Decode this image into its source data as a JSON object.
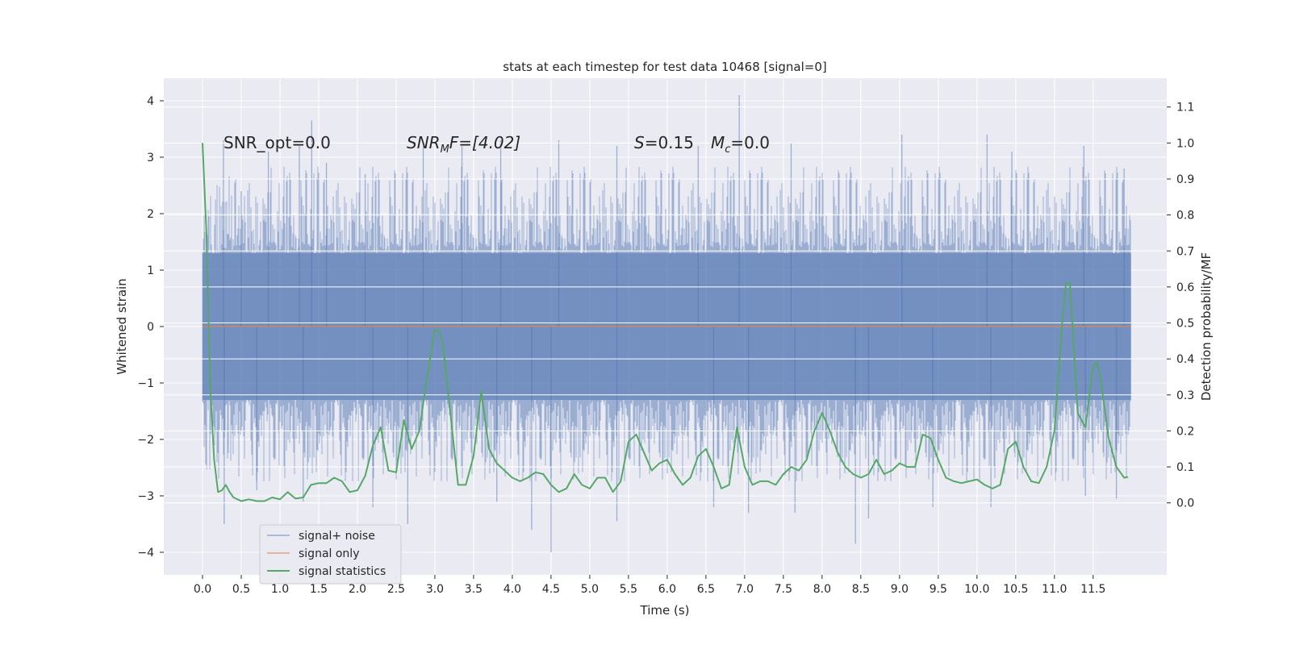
{
  "chart_data": {
    "type": "line",
    "title": "stats at each timestep for test data 10468 [signal=0]",
    "xlabel": "Time (s)",
    "ylabel": "Whitened strain",
    "y2label": "Detection probability/MF",
    "xlim": [
      -0.5,
      12.45
    ],
    "ylim": [
      -4.4,
      4.4
    ],
    "y2lim": [
      -0.2,
      1.18
    ],
    "x_ticks": [
      "0.0",
      "0.5",
      "1.0",
      "1.5",
      "2.0",
      "2.5",
      "3.0",
      "3.5",
      "4.0",
      "4.5",
      "5.0",
      "5.5",
      "6.0",
      "6.5",
      "7.0",
      "7.5",
      "8.0",
      "8.5",
      "9.0",
      "9.5",
      "10.0",
      "10.5",
      "11.0",
      "11.5"
    ],
    "y_ticks": [
      "−4",
      "−3",
      "−2",
      "−1",
      "0",
      "1",
      "2",
      "3",
      "4"
    ],
    "y2_ticks": [
      "0.0",
      "0.1",
      "0.2",
      "0.3",
      "0.4",
      "0.5",
      "0.6",
      "0.7",
      "0.8",
      "0.9",
      "1.0",
      "1.1"
    ],
    "grid": true,
    "legend_position": "lower-left",
    "colors": {
      "background": "#eaeaf2",
      "grid": "#ffffff",
      "noise": "#4c72b0",
      "signal": "#dd8452",
      "stats": "#55a868"
    },
    "annotations": {
      "snr_opt": "SNR_opt=0.0",
      "snr_mf_base": "SNR",
      "snr_mf_sub": "M",
      "snr_mf_rest": "F=[4.02]",
      "s_base": "S",
      "s_rest": "=0.15",
      "mc_base": "M",
      "mc_sub": "c",
      "mc_rest": "=0.0"
    },
    "noise_series": {
      "name": "signal+ noise",
      "x_start": 0.0,
      "x_end": 11.99,
      "core_amplitude": 1.3,
      "spikes": [
        {
          "x": 0.27,
          "y": 3.3
        },
        {
          "x": 0.5,
          "y": 2.4
        },
        {
          "x": 0.85,
          "y": 3.1
        },
        {
          "x": 1.25,
          "y": 3.2
        },
        {
          "x": 1.41,
          "y": 3.65
        },
        {
          "x": 1.6,
          "y": 2.9
        },
        {
          "x": 2.1,
          "y": 2.7
        },
        {
          "x": 2.85,
          "y": 3.2
        },
        {
          "x": 3.35,
          "y": 3.2
        },
        {
          "x": 3.85,
          "y": 3.3
        },
        {
          "x": 4.6,
          "y": 3.3
        },
        {
          "x": 5.35,
          "y": 3.2
        },
        {
          "x": 6.4,
          "y": 3.2
        },
        {
          "x": 6.93,
          "y": 4.1
        },
        {
          "x": 7.6,
          "y": 3.25
        },
        {
          "x": 9.03,
          "y": 3.4
        },
        {
          "x": 10.13,
          "y": 3.4
        },
        {
          "x": 10.45,
          "y": 3.1
        },
        {
          "x": 11.38,
          "y": 3.2
        },
        {
          "x": 11.9,
          "y": 2.8
        },
        {
          "x": 0.28,
          "y": -3.5
        },
        {
          "x": 0.7,
          "y": -2.9
        },
        {
          "x": 1.3,
          "y": -3.1
        },
        {
          "x": 2.2,
          "y": -3.2
        },
        {
          "x": 2.65,
          "y": -3.5
        },
        {
          "x": 3.8,
          "y": -3.1
        },
        {
          "x": 4.25,
          "y": -3.6
        },
        {
          "x": 4.5,
          "y": -4.0
        },
        {
          "x": 5.35,
          "y": -3.45
        },
        {
          "x": 6.6,
          "y": -3.2
        },
        {
          "x": 7.05,
          "y": -3.3
        },
        {
          "x": 7.65,
          "y": -3.3
        },
        {
          "x": 8.43,
          "y": -3.85
        },
        {
          "x": 8.6,
          "y": -3.4
        },
        {
          "x": 9.43,
          "y": -3.2
        },
        {
          "x": 10.18,
          "y": -3.2
        },
        {
          "x": 11.4,
          "y": -3.0
        },
        {
          "x": 11.8,
          "y": -3.05
        }
      ]
    },
    "signal_series": {
      "name": "signal only",
      "x": [
        0.0,
        11.99
      ],
      "y": [
        0.0,
        0.0
      ]
    },
    "stats_series": {
      "name": "signal statistics",
      "x": [
        0.0,
        0.05,
        0.1,
        0.15,
        0.2,
        0.25,
        0.3,
        0.35,
        0.4,
        0.5,
        0.6,
        0.7,
        0.8,
        0.9,
        1.0,
        1.1,
        1.2,
        1.3,
        1.4,
        1.5,
        1.6,
        1.7,
        1.8,
        1.9,
        2.0,
        2.1,
        2.2,
        2.3,
        2.4,
        2.5,
        2.6,
        2.7,
        2.8,
        2.9,
        3.0,
        3.05,
        3.1,
        3.2,
        3.3,
        3.4,
        3.5,
        3.6,
        3.7,
        3.8,
        3.9,
        4.0,
        4.1,
        4.2,
        4.3,
        4.4,
        4.5,
        4.6,
        4.7,
        4.8,
        4.9,
        5.0,
        5.1,
        5.2,
        5.3,
        5.4,
        5.5,
        5.6,
        5.7,
        5.8,
        5.9,
        6.0,
        6.1,
        6.2,
        6.3,
        6.4,
        6.5,
        6.6,
        6.7,
        6.8,
        6.9,
        7.0,
        7.1,
        7.2,
        7.3,
        7.4,
        7.5,
        7.6,
        7.7,
        7.8,
        7.9,
        8.0,
        8.1,
        8.2,
        8.3,
        8.4,
        8.5,
        8.6,
        8.7,
        8.8,
        8.9,
        9.0,
        9.1,
        9.2,
        9.3,
        9.4,
        9.5,
        9.6,
        9.7,
        9.8,
        9.9,
        10.0,
        10.1,
        10.2,
        10.3,
        10.4,
        10.5,
        10.6,
        10.7,
        10.8,
        10.9,
        11.0,
        11.05,
        11.1,
        11.15,
        11.2,
        11.3,
        11.4,
        11.5,
        11.55,
        11.6,
        11.7,
        11.8,
        11.9,
        11.95
      ],
      "y": [
        1.0,
        0.75,
        0.32,
        0.12,
        0.03,
        0.035,
        0.05,
        0.03,
        0.015,
        0.005,
        0.01,
        0.005,
        0.005,
        0.015,
        0.01,
        0.03,
        0.012,
        0.015,
        0.05,
        0.055,
        0.055,
        0.07,
        0.06,
        0.03,
        0.035,
        0.075,
        0.16,
        0.21,
        0.09,
        0.085,
        0.23,
        0.15,
        0.2,
        0.35,
        0.48,
        0.48,
        0.45,
        0.25,
        0.05,
        0.05,
        0.13,
        0.31,
        0.15,
        0.11,
        0.09,
        0.07,
        0.06,
        0.07,
        0.085,
        0.08,
        0.05,
        0.03,
        0.04,
        0.08,
        0.05,
        0.04,
        0.07,
        0.07,
        0.03,
        0.06,
        0.17,
        0.19,
        0.14,
        0.09,
        0.11,
        0.12,
        0.08,
        0.05,
        0.07,
        0.13,
        0.15,
        0.1,
        0.04,
        0.05,
        0.21,
        0.1,
        0.05,
        0.06,
        0.06,
        0.05,
        0.08,
        0.1,
        0.09,
        0.12,
        0.2,
        0.25,
        0.2,
        0.14,
        0.1,
        0.08,
        0.07,
        0.08,
        0.12,
        0.08,
        0.09,
        0.11,
        0.1,
        0.1,
        0.19,
        0.18,
        0.12,
        0.07,
        0.06,
        0.055,
        0.06,
        0.065,
        0.05,
        0.04,
        0.05,
        0.15,
        0.17,
        0.1,
        0.06,
        0.055,
        0.1,
        0.2,
        0.35,
        0.5,
        0.61,
        0.61,
        0.25,
        0.21,
        0.38,
        0.39,
        0.34,
        0.18,
        0.1,
        0.07,
        0.072
      ]
    },
    "legend": [
      {
        "label": "signal+ noise",
        "key": "noise"
      },
      {
        "label": "signal only",
        "key": "signal"
      },
      {
        "label": "signal statistics",
        "key": "stats"
      }
    ]
  }
}
